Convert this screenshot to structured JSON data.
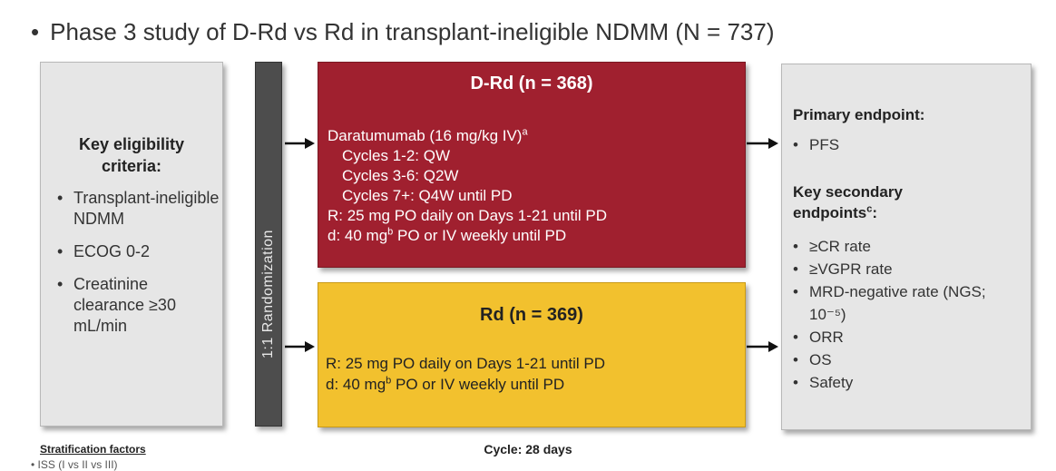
{
  "header": {
    "bullet": "•",
    "title": "Phase 3 study of D-Rd vs Rd in transplant-ineligible NDMM (N = 737)"
  },
  "eligibility": {
    "title_line1": "Key eligibility",
    "title_line2": "criteria:",
    "items": [
      "Transplant-ineligible NDMM",
      "ECOG 0-2",
      "Creatinine clearance ≥30 mL/min"
    ]
  },
  "randomization": {
    "label": "1:1 Randomization"
  },
  "arm_drd": {
    "title": "D-Rd (n = 368)",
    "dara_text": "Daratumumab (16 mg/kg IV)",
    "dara_sup": "a",
    "cycles": [
      "Cycles 1-2: QW",
      "Cycles 3-6: Q2W",
      "Cycles 7+: Q4W until PD"
    ],
    "r_line": "R: 25 mg PO daily on Days 1-21 until PD",
    "d_prefix": "d: 40 mg",
    "d_sup": "b",
    "d_suffix": " PO or IV weekly until PD",
    "color": "#a0202f"
  },
  "arm_rd": {
    "title": "Rd (n = 369)",
    "r_line": "R: 25 mg PO daily on Days 1-21 until PD",
    "d_prefix": "d: 40 mg",
    "d_sup": "b",
    "d_suffix": " PO or IV weekly until PD",
    "color": "#f2c12e"
  },
  "endpoints": {
    "primary_title": "Primary endpoint:",
    "primary_items": [
      "PFS"
    ],
    "secondary_title_line1": "Key secondary",
    "secondary_title_line2": "endpoints",
    "secondary_sup": "c",
    "secondary_colon": ":",
    "secondary_items": [
      "≥CR rate",
      "≥VGPR rate",
      "MRD-negative rate (NGS; 10⁻⁵)",
      "ORR",
      "OS",
      "Safety"
    ]
  },
  "footer": {
    "cycle": "Cycle: 28 days",
    "stratification_title": "Stratification factors",
    "stratification_first": "•  ISS (I vs II vs III)"
  }
}
